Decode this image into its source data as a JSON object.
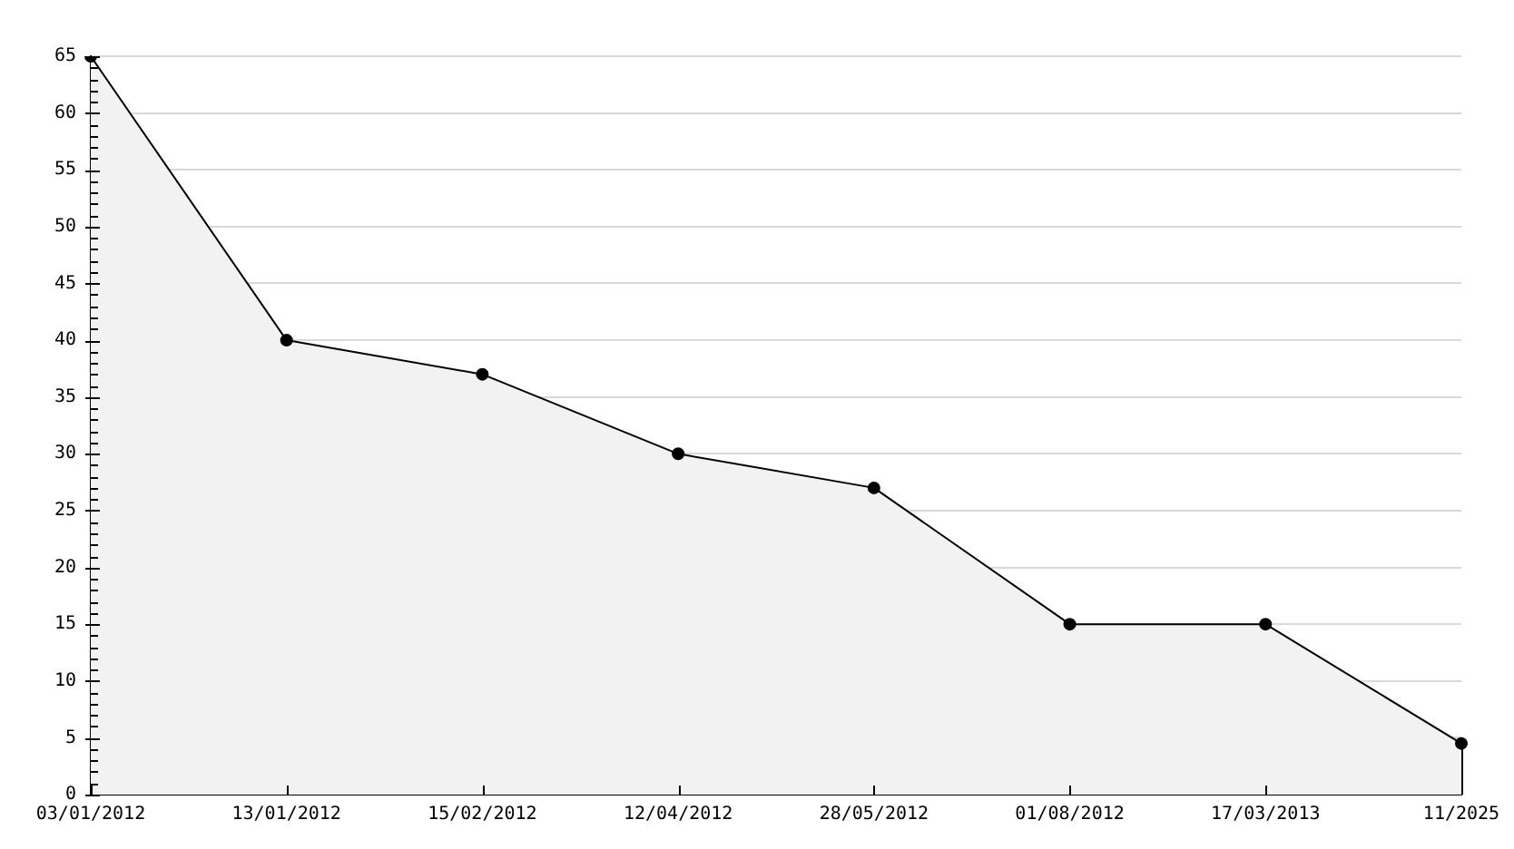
{
  "chart_data": {
    "type": "area",
    "categories": [
      "03/01/2012",
      "13/01/2012",
      "15/02/2012",
      "12/04/2012",
      "28/05/2012",
      "01/08/2012",
      "17/03/2013",
      "11/2025"
    ],
    "series": [
      {
        "color": "#000000",
        "values": [
          65,
          40,
          37,
          30,
          27,
          15,
          15,
          4.5
        ]
      }
    ],
    "ylim": [
      0,
      65
    ],
    "yticks": [
      0,
      {
        "value": 1,
        "label": null
      },
      {
        "value": 2,
        "label": null
      },
      {
        "value": 3,
        "label": null
      },
      {
        "value": 4,
        "label": null
      },
      5,
      {
        "value": 6,
        "label": null
      },
      {
        "value": 7,
        "label": null
      },
      {
        "value": 8,
        "label": null
      },
      {
        "value": 9,
        "label": null
      },
      10,
      {
        "value": 11,
        "label": null
      },
      {
        "value": 12,
        "label": null
      },
      {
        "value": 13,
        "label": null
      },
      {
        "value": 14,
        "label": null
      },
      15,
      {
        "value": 16,
        "label": null
      },
      {
        "value": 17,
        "label": null
      },
      {
        "value": 18,
        "label": null
      },
      {
        "value": 19,
        "label": null
      },
      20,
      {
        "value": 21,
        "label": null
      },
      {
        "value": 22,
        "label": null
      },
      {
        "value": 23,
        "label": null
      },
      {
        "value": 24,
        "label": null
      },
      25,
      {
        "value": 26,
        "label": null
      },
      {
        "value": 27,
        "label": null
      },
      {
        "value": 28,
        "label": null
      },
      {
        "value": 29,
        "label": null
      },
      30,
      {
        "value": 31,
        "label": null
      },
      {
        "value": 32,
        "label": null
      },
      {
        "value": 33,
        "label": null
      },
      {
        "value": 34,
        "label": null
      },
      35,
      {
        "value": 36,
        "label": null
      },
      {
        "value": 37,
        "label": null
      },
      {
        "value": 38,
        "label": null
      },
      {
        "value": 39,
        "label": null
      },
      40,
      {
        "value": 41,
        "label": null
      },
      {
        "value": 42,
        "label": null
      },
      {
        "value": 43,
        "label": null
      },
      {
        "value": 44,
        "label": null
      },
      45,
      {
        "value": 46,
        "label": null
      },
      {
        "value": 47,
        "label": null
      },
      {
        "value": 48,
        "label": null
      },
      {
        "value": 49,
        "label": null
      },
      50,
      {
        "value": 51,
        "label": null
      },
      {
        "value": 52,
        "label": null
      },
      {
        "value": 53,
        "label": null
      },
      {
        "value": 54,
        "label": null
      },
      55,
      {
        "value": 56,
        "label": null
      },
      {
        "value": 57,
        "label": null
      },
      {
        "value": 58,
        "label": null
      },
      {
        "value": 59,
        "label": null
      },
      60,
      {
        "value": 61,
        "label": null
      },
      {
        "value": 62,
        "label": null
      },
      {
        "value": 63,
        "label": null
      },
      {
        "value": 64,
        "label": null
      },
      65
    ],
    "grid": "y",
    "marker": "circle"
  }
}
